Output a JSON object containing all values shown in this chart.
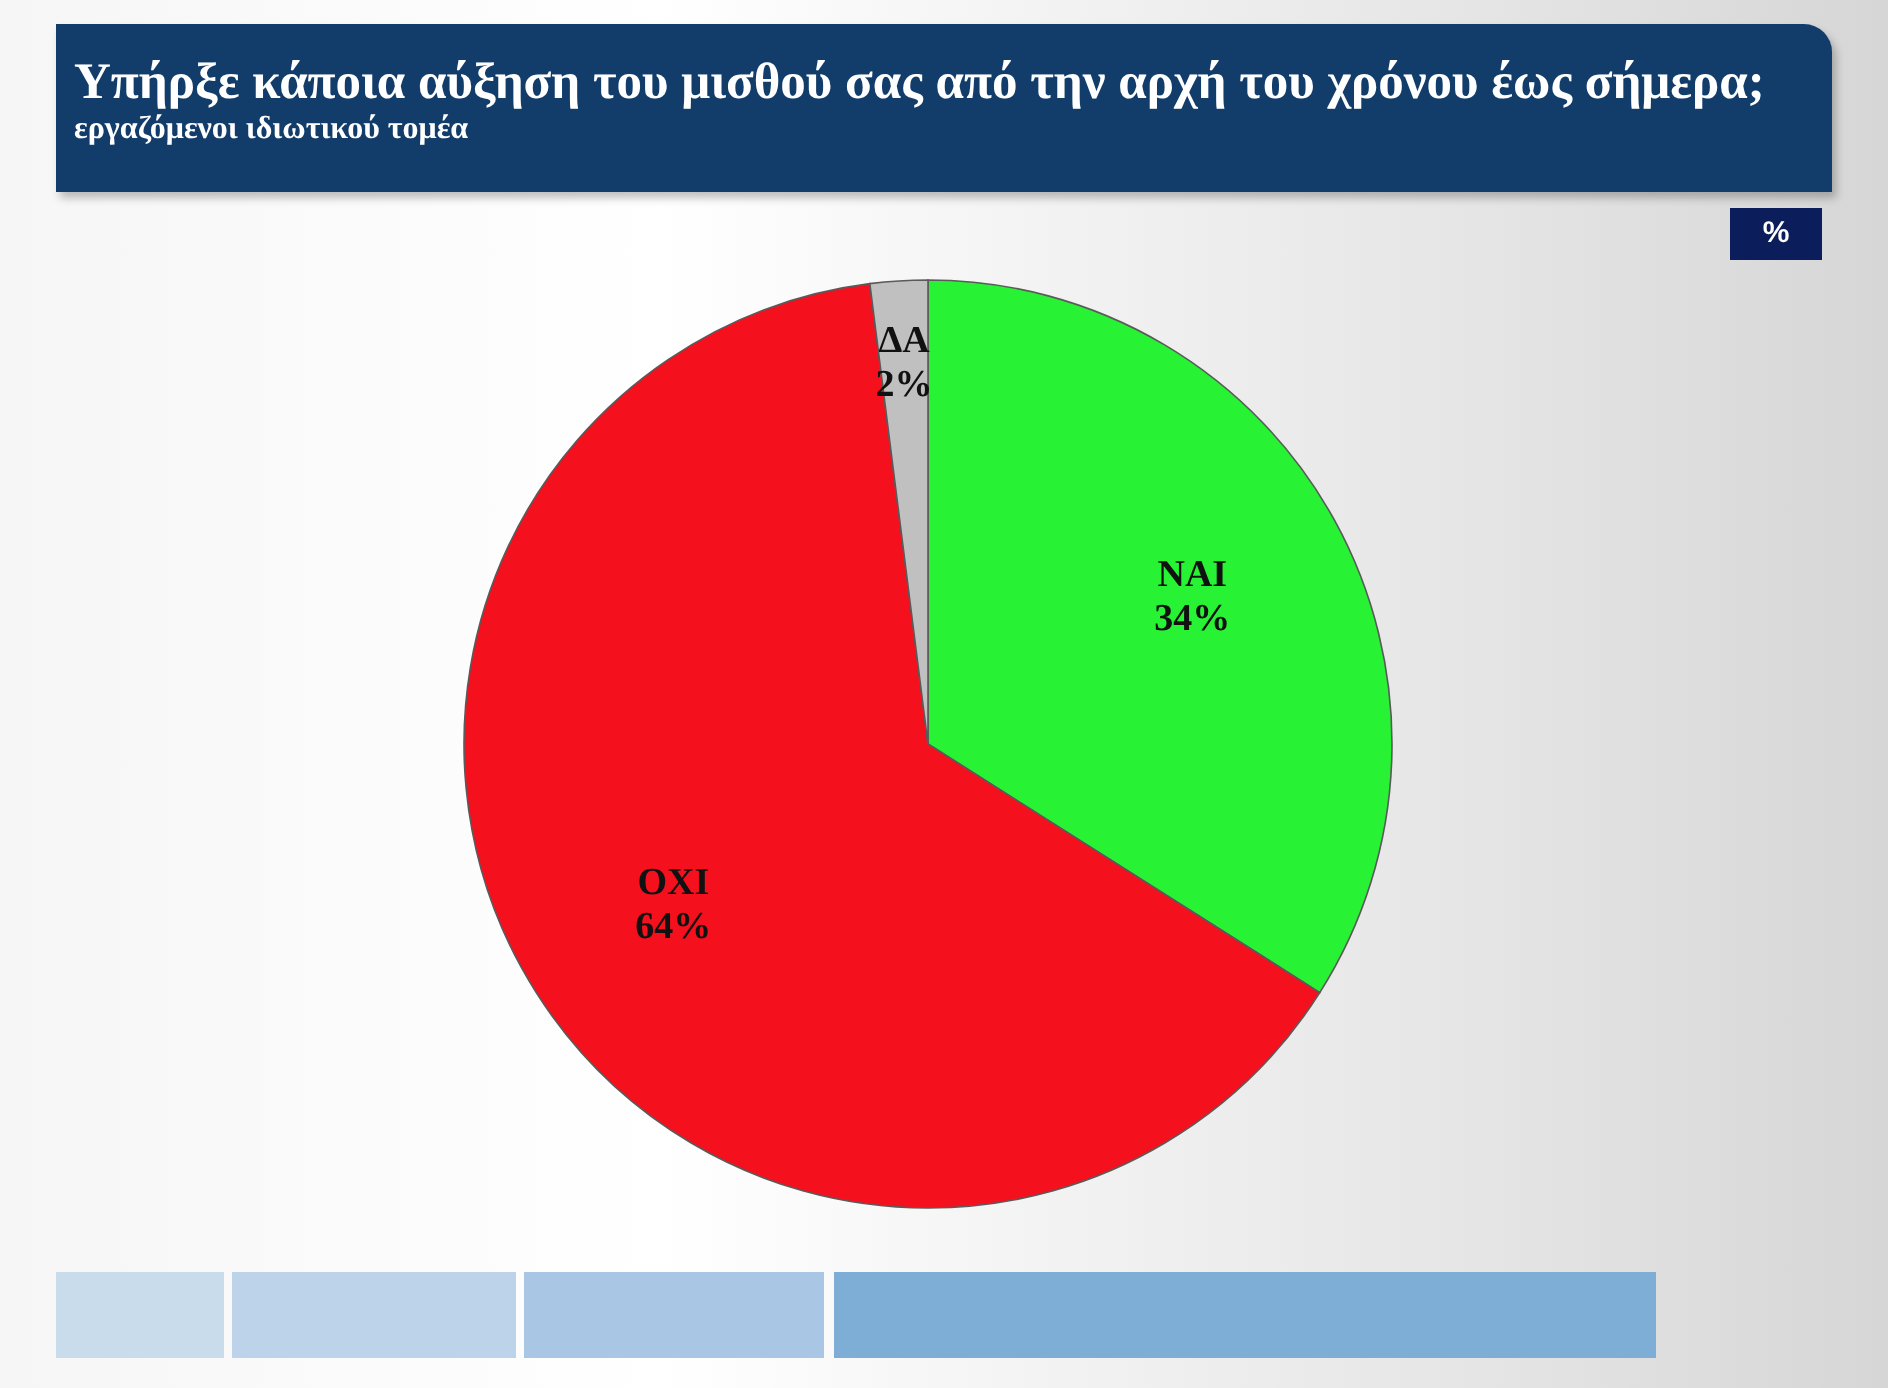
{
  "chart_data": {
    "type": "pie",
    "title": "Υπήρξε κάποια αύξηση του μισθού σας από την αρχή του χρόνου έως σήμερα;",
    "subtitle": "εργαζόμενοι ιδιωτικού τομέα",
    "annotations": [
      "%"
    ],
    "categories": [
      "ΝΑΙ",
      "ΟΧΙ",
      "ΔΑ"
    ],
    "values": [
      34,
      64,
      2
    ],
    "colors": [
      "#27f234",
      "#f5101e",
      "#c0c0c0"
    ],
    "value_labels": [
      "34%",
      "64%",
      "2%"
    ]
  }
}
